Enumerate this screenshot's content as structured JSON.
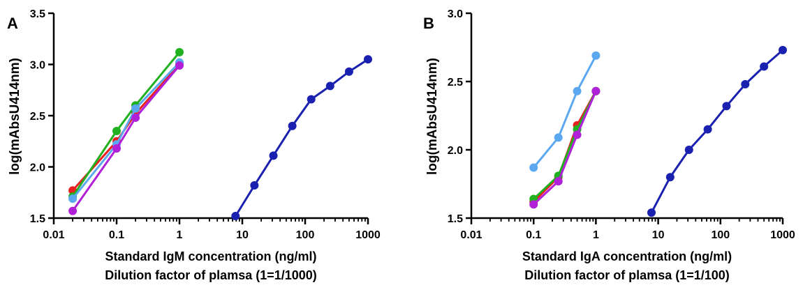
{
  "chart_data": [
    {
      "type": "line",
      "panel_label": "A",
      "xscale": "log",
      "xlim": [
        0.01,
        1000
      ],
      "ylim": [
        1.5,
        3.5
      ],
      "xlabel": "Standard IgM concentration (ng/ml)",
      "xlabel2": "Dilution factor of plamsa (1=1/1000)",
      "ylabel": "log(mAbsU414nm)",
      "xticks": [
        "0.01",
        "0.1",
        "1",
        "10",
        "100",
        "1000"
      ],
      "yticks": [
        "1.5",
        "2.0",
        "2.5",
        "3.0",
        "3.5"
      ],
      "series": [
        {
          "color": "#e8201e",
          "points": [
            [
              0.02,
              1.77
            ],
            [
              0.1,
              2.25
            ],
            [
              0.2,
              2.52
            ],
            [
              1,
              3.0
            ]
          ]
        },
        {
          "color": "#20b020",
          "points": [
            [
              0.02,
              1.71
            ],
            [
              0.1,
              2.35
            ],
            [
              0.2,
              2.6
            ],
            [
              1,
              3.12
            ]
          ]
        },
        {
          "color": "#5ba8f0",
          "points": [
            [
              0.02,
              1.69
            ],
            [
              0.1,
              2.22
            ],
            [
              0.2,
              2.57
            ],
            [
              1,
              3.02
            ]
          ]
        },
        {
          "color": "#b020d8",
          "points": [
            [
              0.02,
              1.57
            ],
            [
              0.1,
              2.18
            ],
            [
              0.2,
              2.48
            ],
            [
              1,
              2.99
            ]
          ]
        },
        {
          "color": "#1a20b0",
          "points": [
            [
              7.8,
              1.52
            ],
            [
              15.6,
              1.82
            ],
            [
              31.25,
              2.11
            ],
            [
              62.5,
              2.4
            ],
            [
              125,
              2.66
            ],
            [
              250,
              2.79
            ],
            [
              500,
              2.93
            ],
            [
              1000,
              3.05
            ]
          ]
        }
      ]
    },
    {
      "type": "line",
      "panel_label": "B",
      "xscale": "log",
      "xlim": [
        0.01,
        1000
      ],
      "ylim": [
        1.5,
        3.0
      ],
      "xlabel": "Standard IgA concentration (ng/ml)",
      "xlabel2": "Dilution factor of plamsa (1=1/100)",
      "ylabel": "log(mAbsU414nm)",
      "xticks": [
        "0.01",
        "0.1",
        "1",
        "10",
        "100",
        "1000"
      ],
      "yticks": [
        "1.5",
        "2.0",
        "2.5",
        "3.0"
      ],
      "series": [
        {
          "color": "#e8201e",
          "points": [
            [
              0.1,
              1.62
            ],
            [
              0.25,
              1.8
            ],
            [
              0.5,
              2.18
            ],
            [
              1,
              2.43
            ]
          ]
        },
        {
          "color": "#20b020",
          "points": [
            [
              0.1,
              1.64
            ],
            [
              0.25,
              1.81
            ],
            [
              0.5,
              2.15
            ],
            [
              1,
              2.43
            ]
          ]
        },
        {
          "color": "#5ba8f0",
          "points": [
            [
              0.1,
              1.87
            ],
            [
              0.25,
              2.09
            ],
            [
              0.5,
              2.43
            ],
            [
              1,
              2.69
            ]
          ]
        },
        {
          "color": "#b020d8",
          "points": [
            [
              0.1,
              1.6
            ],
            [
              0.25,
              1.77
            ],
            [
              0.5,
              2.11
            ],
            [
              1,
              2.43
            ]
          ]
        },
        {
          "color": "#1a20b0",
          "points": [
            [
              7.8,
              1.54
            ],
            [
              15.6,
              1.8
            ],
            [
              31.25,
              2.0
            ],
            [
              62.5,
              2.15
            ],
            [
              125,
              2.32
            ],
            [
              250,
              2.48
            ],
            [
              500,
              2.61
            ],
            [
              1000,
              2.73
            ]
          ]
        }
      ]
    }
  ]
}
